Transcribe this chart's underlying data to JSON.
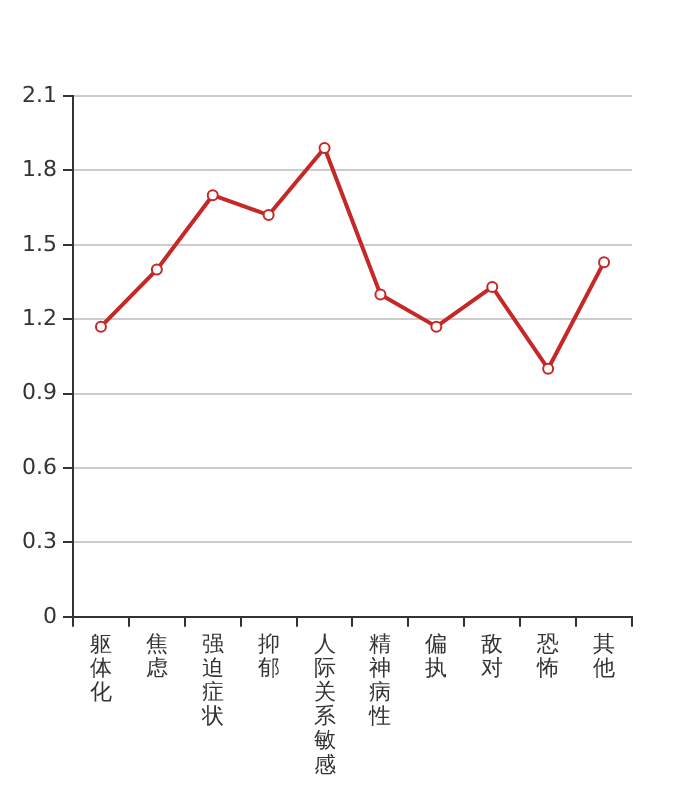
{
  "chart_data": {
    "type": "line",
    "categories": [
      "躯体化",
      "焦虑",
      "强迫症状",
      "抑郁",
      "人际关系敏感",
      "精神病性",
      "偏执",
      "敌对",
      "恐怖",
      "其他"
    ],
    "series": [
      {
        "color": "#c62828",
        "values": [
          1.17,
          1.4,
          1.7,
          1.62,
          1.89,
          1.3,
          1.17,
          1.33,
          1.0,
          1.43
        ]
      }
    ],
    "ylim": [
      0,
      2.1
    ],
    "yticks": [
      0,
      0.3,
      0.6,
      0.9,
      1.2,
      1.5,
      1.8,
      2.1
    ],
    "grid": "y",
    "legend": false,
    "marker": "circle",
    "line_style": "solid"
  }
}
